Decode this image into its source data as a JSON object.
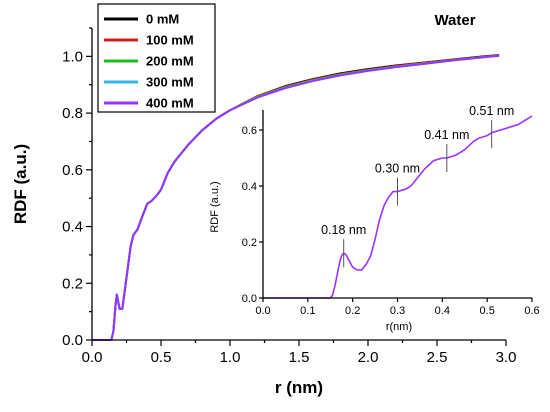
{
  "chart_data": [
    {
      "type": "line",
      "title": "Water",
      "xlabel": "r (nm)",
      "ylabel": "RDF (a.u.)",
      "xlim": [
        0.0,
        3.0
      ],
      "ylim": [
        0.0,
        1.1
      ],
      "xticks": [
        "0.0",
        "0.5",
        "1.0",
        "1.5",
        "2.0",
        "2.5",
        "3.0"
      ],
      "yticks": [
        "0.0",
        "0.2",
        "0.4",
        "0.6",
        "0.8",
        "1.0"
      ],
      "legend": {
        "placement": "top-left",
        "entries": [
          "0 mM",
          "100 mM",
          "200 mM",
          "300 mM",
          "400 mM"
        ]
      },
      "colors": [
        "#000000",
        "#d01c1c",
        "#22bb22",
        "#33b5e5",
        "#9933ff"
      ],
      "x": [
        0.0,
        0.1,
        0.14,
        0.155,
        0.17,
        0.18,
        0.2,
        0.22,
        0.25,
        0.28,
        0.3,
        0.33,
        0.36,
        0.4,
        0.43,
        0.47,
        0.5,
        0.55,
        0.6,
        0.7,
        0.8,
        0.9,
        1.0,
        1.2,
        1.4,
        1.6,
        1.8,
        2.0,
        2.2,
        2.4,
        2.6,
        2.8,
        2.95
      ],
      "series": [
        {
          "name": "0 mM",
          "values": [
            0.0,
            0.0,
            0.0,
            0.03,
            0.12,
            0.16,
            0.11,
            0.11,
            0.22,
            0.33,
            0.37,
            0.39,
            0.43,
            0.48,
            0.49,
            0.51,
            0.53,
            0.59,
            0.63,
            0.69,
            0.74,
            0.78,
            0.81,
            0.86,
            0.895,
            0.92,
            0.94,
            0.955,
            0.968,
            0.978,
            0.988,
            0.998,
            1.005
          ]
        },
        {
          "name": "100 mM",
          "values": [
            0.0,
            0.0,
            0.0,
            0.03,
            0.12,
            0.16,
            0.11,
            0.11,
            0.22,
            0.33,
            0.37,
            0.39,
            0.43,
            0.48,
            0.49,
            0.51,
            0.53,
            0.59,
            0.63,
            0.69,
            0.74,
            0.78,
            0.81,
            0.86,
            0.893,
            0.918,
            0.938,
            0.953,
            0.966,
            0.977,
            0.987,
            0.997,
            1.004
          ]
        },
        {
          "name": "200 mM",
          "values": [
            0.0,
            0.0,
            0.0,
            0.03,
            0.12,
            0.16,
            0.11,
            0.11,
            0.22,
            0.33,
            0.37,
            0.39,
            0.43,
            0.48,
            0.49,
            0.51,
            0.53,
            0.59,
            0.63,
            0.69,
            0.74,
            0.78,
            0.81,
            0.858,
            0.891,
            0.916,
            0.936,
            0.951,
            0.964,
            0.975,
            0.986,
            0.996,
            1.003
          ]
        },
        {
          "name": "300 mM",
          "values": [
            0.0,
            0.0,
            0.0,
            0.03,
            0.12,
            0.16,
            0.11,
            0.11,
            0.22,
            0.33,
            0.37,
            0.39,
            0.43,
            0.48,
            0.49,
            0.51,
            0.53,
            0.59,
            0.63,
            0.69,
            0.74,
            0.78,
            0.81,
            0.856,
            0.889,
            0.914,
            0.934,
            0.95,
            0.963,
            0.974,
            0.985,
            0.995,
            1.002
          ]
        },
        {
          "name": "400 mM",
          "values": [
            0.0,
            0.0,
            0.0,
            0.03,
            0.12,
            0.16,
            0.11,
            0.11,
            0.22,
            0.33,
            0.37,
            0.39,
            0.43,
            0.48,
            0.49,
            0.51,
            0.53,
            0.59,
            0.63,
            0.69,
            0.74,
            0.78,
            0.81,
            0.855,
            0.888,
            0.913,
            0.933,
            0.949,
            0.962,
            0.973,
            0.985,
            0.995,
            1.002
          ]
        }
      ]
    },
    {
      "type": "line",
      "title": "",
      "xlabel": "r(nm)",
      "ylabel": "RDF (a.u.)",
      "xlim": [
        0.0,
        0.6
      ],
      "ylim": [
        0.0,
        0.65
      ],
      "xticks": [
        "0.0",
        "0.1",
        "0.2",
        "0.3",
        "0.4",
        "0.5",
        "0.6"
      ],
      "yticks": [
        "0.0",
        "0.2",
        "0.4",
        "0.6"
      ],
      "color": "#9933ff",
      "x": [
        0.0,
        0.15,
        0.155,
        0.16,
        0.165,
        0.17,
        0.175,
        0.18,
        0.185,
        0.19,
        0.2,
        0.21,
        0.22,
        0.23,
        0.24,
        0.25,
        0.26,
        0.27,
        0.28,
        0.29,
        0.3,
        0.31,
        0.32,
        0.33,
        0.34,
        0.35,
        0.36,
        0.37,
        0.38,
        0.39,
        0.4,
        0.41,
        0.42,
        0.43,
        0.44,
        0.45,
        0.46,
        0.47,
        0.48,
        0.49,
        0.5,
        0.51,
        0.52,
        0.53,
        0.54,
        0.55,
        0.56,
        0.57,
        0.58,
        0.59,
        0.6
      ],
      "values": [
        0.0,
        0.0,
        0.01,
        0.04,
        0.08,
        0.12,
        0.15,
        0.16,
        0.155,
        0.14,
        0.11,
        0.1,
        0.1,
        0.12,
        0.15,
        0.21,
        0.28,
        0.33,
        0.36,
        0.38,
        0.38,
        0.385,
        0.39,
        0.4,
        0.42,
        0.44,
        0.46,
        0.475,
        0.49,
        0.495,
        0.5,
        0.5,
        0.505,
        0.51,
        0.52,
        0.53,
        0.545,
        0.56,
        0.57,
        0.575,
        0.58,
        0.59,
        0.595,
        0.6,
        0.605,
        0.61,
        0.615,
        0.62,
        0.63,
        0.64,
        0.65
      ],
      "annotations": [
        {
          "label": "0.18 nm",
          "x": 0.18,
          "y": 0.16
        },
        {
          "label": "0.30 nm",
          "x": 0.3,
          "y": 0.38
        },
        {
          "label": "0.41 nm",
          "x": 0.41,
          "y": 0.5
        },
        {
          "label": "0.51 nm",
          "x": 0.51,
          "y": 0.585
        }
      ]
    }
  ]
}
